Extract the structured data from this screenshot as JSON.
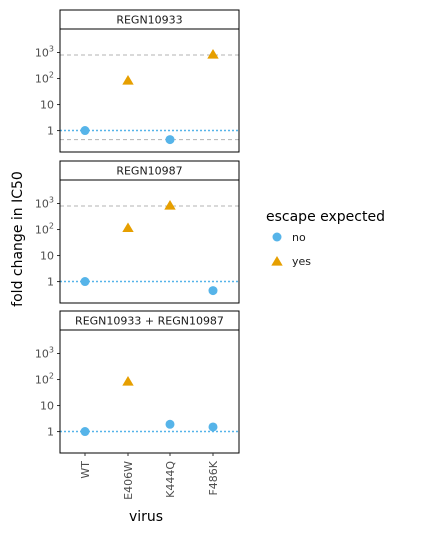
{
  "chart_data": {
    "type": "scatter",
    "xlabel": "virus",
    "ylabel": "fold change in IC50",
    "y_scale": "log",
    "ylim": [
      0.15,
      8000
    ],
    "categories": [
      "WT",
      "E406W",
      "K444Q",
      "F486K"
    ],
    "y_ticks": [
      {
        "value": 1,
        "label": "1"
      },
      {
        "value": 10,
        "label": "10"
      },
      {
        "value": 100,
        "label": "10",
        "exp": "2"
      },
      {
        "value": 1000,
        "label": "10",
        "exp": "3"
      }
    ],
    "legend": {
      "title": "escape expected",
      "position": "right",
      "entries": [
        {
          "label": "no",
          "shape": "circle",
          "color": "#56B4E9"
        },
        {
          "label": "yes",
          "shape": "triangle",
          "color": "#E69F00"
        }
      ]
    },
    "colors": {
      "no": "#56B4E9",
      "yes": "#E69F00",
      "reference_dotted": "#56B4E9",
      "limit_dashed": "#b3b3b3"
    },
    "panels": [
      {
        "title": "REGN10933",
        "reference_line": 1,
        "limit_lines": [
          800,
          0.45
        ],
        "points": [
          {
            "x": "WT",
            "y": 1,
            "escape": "no"
          },
          {
            "x": "E406W",
            "y": 80,
            "escape": "yes"
          },
          {
            "x": "K444Q",
            "y": 0.45,
            "escape": "no"
          },
          {
            "x": "F486K",
            "y": 800,
            "escape": "yes"
          }
        ]
      },
      {
        "title": "REGN10987",
        "reference_line": 1,
        "limit_lines": [
          800
        ],
        "points": [
          {
            "x": "WT",
            "y": 1,
            "escape": "no"
          },
          {
            "x": "E406W",
            "y": 110,
            "escape": "yes"
          },
          {
            "x": "K444Q",
            "y": 800,
            "escape": "yes"
          },
          {
            "x": "F486K",
            "y": 0.45,
            "escape": "no"
          }
        ]
      },
      {
        "title": "REGN10933 + REGN10987",
        "reference_line": 1,
        "limit_lines": [],
        "points": [
          {
            "x": "WT",
            "y": 1,
            "escape": "no"
          },
          {
            "x": "E406W",
            "y": 80,
            "escape": "yes"
          },
          {
            "x": "K444Q",
            "y": 1.9,
            "escape": "no"
          },
          {
            "x": "F486K",
            "y": 1.5,
            "escape": "no"
          }
        ]
      }
    ]
  }
}
